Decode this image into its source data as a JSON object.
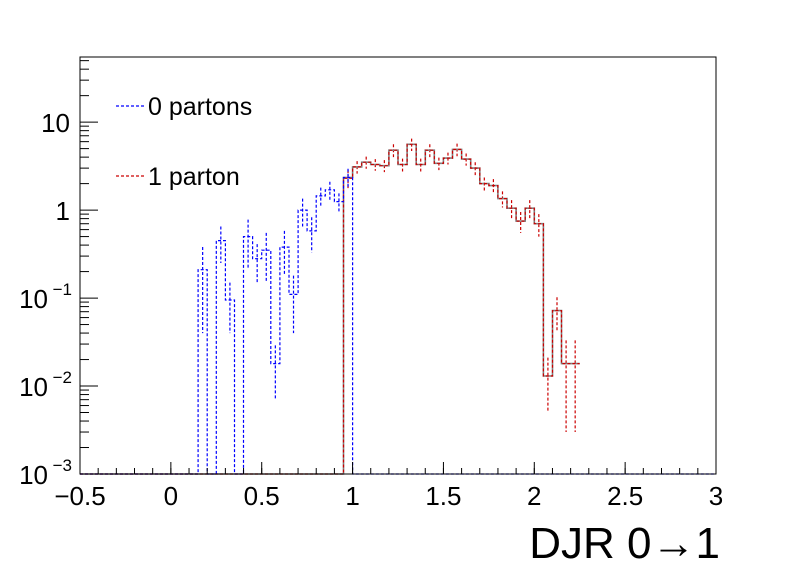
{
  "chart_data": {
    "type": "step-histogram",
    "xlabel": "DJR 0→1",
    "ylabel": "",
    "title": "",
    "yscale": "log",
    "xlim": [
      -0.5,
      3.0
    ],
    "ylim": [
      0.001,
      55
    ],
    "x_ticks": [
      {
        "value": -0.5,
        "label": "−0.5"
      },
      {
        "value": 0,
        "label": "0"
      },
      {
        "value": 0.5,
        "label": "0.5"
      },
      {
        "value": 1,
        "label": "1"
      },
      {
        "value": 1.5,
        "label": "1.5"
      },
      {
        "value": 2,
        "label": "2"
      },
      {
        "value": 2.5,
        "label": "2.5"
      },
      {
        "value": 3,
        "label": "3"
      }
    ],
    "y_ticks": [
      {
        "value": 0.001,
        "base": "10",
        "exp": "−3"
      },
      {
        "value": 0.01,
        "base": "10",
        "exp": "−2"
      },
      {
        "value": 0.1,
        "base": "10",
        "exp": "−1"
      },
      {
        "value": 1,
        "base": "1",
        "exp": ""
      },
      {
        "value": 10,
        "base": "10",
        "exp": ""
      }
    ],
    "bin_start": -0.5,
    "bin_width": 0.05,
    "legend_position": "top-left",
    "series": [
      {
        "name": "0 partons",
        "color": "#0000ff",
        "style": "dashed",
        "values": [
          0.001,
          0.001,
          0.001,
          0.001,
          0.001,
          0.001,
          0.001,
          0.001,
          0.001,
          0.001,
          0.001,
          0.001,
          0.001,
          0.21,
          0.001,
          0.45,
          0.095,
          0.001,
          0.5,
          0.28,
          0.35,
          0.018,
          0.38,
          0.11,
          1.0,
          0.58,
          1.45,
          1.7,
          1.25,
          2.35,
          0.001,
          0.001,
          0.001,
          0.001,
          0.001,
          0.001,
          0.001,
          0.001,
          0.001,
          0.001,
          0.001,
          0.001,
          0.001,
          0.001,
          0.001,
          0.001,
          0.001,
          0.001,
          0.001,
          0.001,
          0.001,
          0.001,
          0.001,
          0.001,
          0.001,
          0.001,
          0.001,
          0.001,
          0.001,
          0.001,
          0.001,
          0.001,
          0.001,
          0.001,
          0.001,
          0.001,
          0.001,
          0.001,
          0.001,
          0.001
        ],
        "errors": [
          0,
          0,
          0,
          0,
          0,
          0,
          0,
          0,
          0,
          0,
          0,
          0,
          0,
          0.17,
          0,
          0.2,
          0.055,
          0,
          0.28,
          0.13,
          0.2,
          0.011,
          0.2,
          0.07,
          0.35,
          0.25,
          0.35,
          0.4,
          0.3,
          0.6,
          0,
          0,
          0,
          0,
          0,
          0,
          0,
          0,
          0,
          0,
          0,
          0,
          0,
          0,
          0,
          0,
          0,
          0,
          0,
          0,
          0,
          0,
          0,
          0,
          0,
          0,
          0,
          0,
          0,
          0,
          0,
          0,
          0,
          0,
          0,
          0,
          0,
          0,
          0,
          0
        ]
      },
      {
        "name": "1 parton",
        "color": "#cc0000",
        "style": "dashed",
        "values": [
          0.001,
          0.001,
          0.001,
          0.001,
          0.001,
          0.001,
          0.001,
          0.001,
          0.001,
          0.001,
          0.001,
          0.001,
          0.001,
          0.001,
          0.001,
          0.001,
          0.001,
          0.001,
          0.001,
          0.001,
          0.001,
          0.001,
          0.001,
          0.001,
          0.001,
          0.001,
          0.001,
          0.001,
          0.001,
          2.3,
          3.1,
          3.5,
          3.3,
          3.2,
          4.8,
          3.3,
          5.6,
          3.3,
          4.8,
          3.4,
          3.9,
          4.9,
          3.8,
          3.0,
          2.0,
          1.9,
          1.35,
          1.05,
          0.75,
          1.05,
          0.7,
          0.013,
          0.072,
          0.018,
          0.018
        ],
        "errors": [
          0,
          0,
          0,
          0,
          0,
          0,
          0,
          0,
          0,
          0,
          0,
          0,
          0,
          0,
          0,
          0,
          0,
          0,
          0,
          0,
          0,
          0,
          0,
          0,
          0,
          0,
          0,
          0,
          0,
          0.55,
          0.5,
          0.55,
          0.5,
          0.5,
          0.8,
          0.55,
          0.9,
          0.55,
          0.8,
          0.55,
          0.6,
          0.8,
          0.6,
          0.5,
          0.35,
          0.35,
          0.28,
          0.25,
          0.2,
          0.25,
          0.2,
          0.008,
          0.03,
          0.015,
          0.015
        ]
      },
      {
        "name": "",
        "color": "#7f7f7f",
        "style": "solid",
        "values": [
          0.001,
          0.001,
          0.001,
          0.001,
          0.001,
          0.001,
          0.001,
          0.001,
          0.001,
          0.001,
          0.001,
          0.001,
          0.001,
          0.001,
          0.001,
          0.001,
          0.001,
          0.001,
          0.001,
          0.001,
          0.001,
          0.001,
          0.001,
          0.001,
          0.001,
          0.001,
          0.001,
          0.001,
          0.001,
          2.35,
          3.1,
          3.5,
          3.3,
          3.2,
          4.8,
          3.3,
          5.6,
          3.3,
          4.8,
          3.4,
          3.9,
          4.9,
          3.8,
          3.0,
          2.0,
          1.9,
          1.35,
          1.05,
          0.75,
          1.05,
          0.7,
          0.013,
          0.072,
          0.018,
          0.018
        ],
        "errors": []
      }
    ]
  }
}
